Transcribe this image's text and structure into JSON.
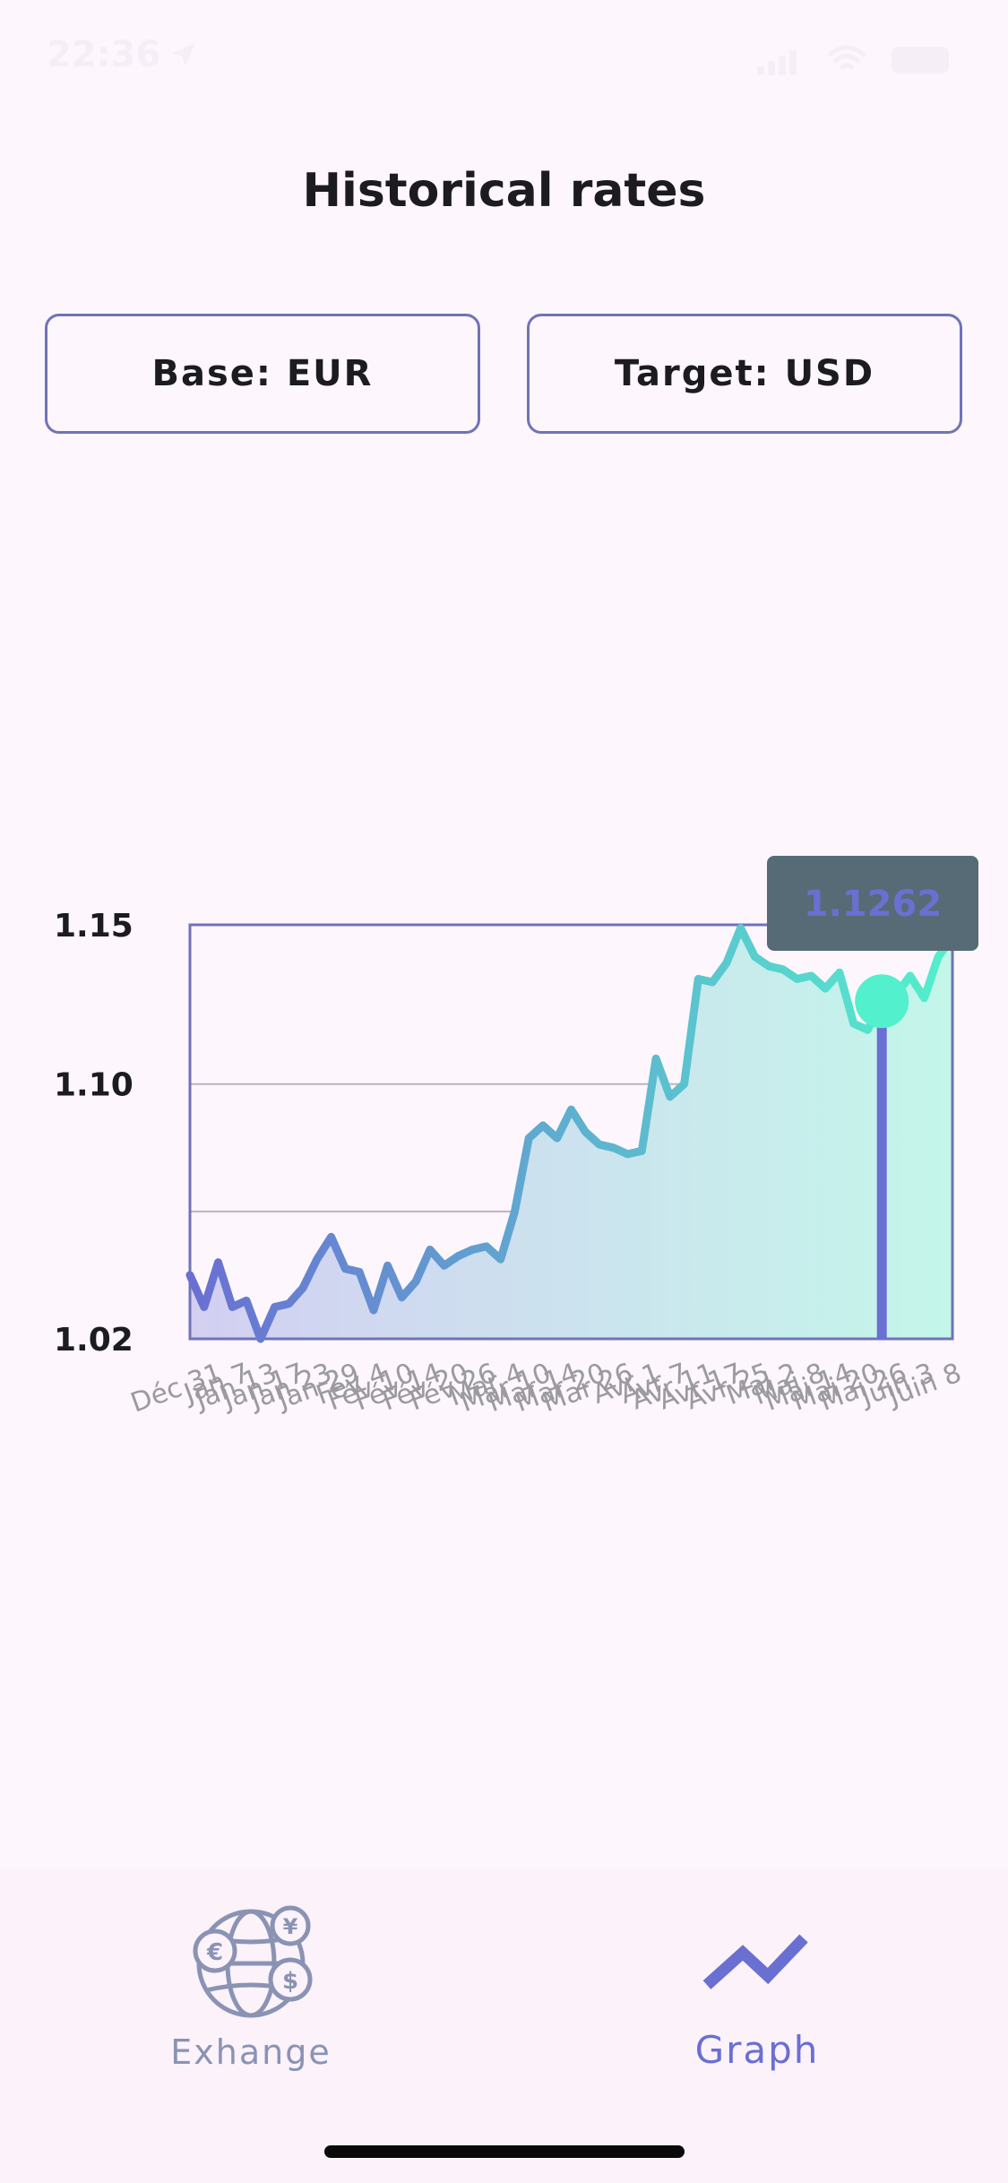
{
  "status_bar": {
    "time": "22:36"
  },
  "header": {
    "title": "Historical rates"
  },
  "selectors": {
    "base_label": "Base: EUR",
    "target_label": "Target: USD"
  },
  "tooltip": {
    "value": "1.1262"
  },
  "colors": {
    "accent": "#6a6fd2",
    "line_start": "#6a6fd2",
    "line_end": "#52f0cc",
    "tooltip_bg": "#566b75",
    "frame": "#6f73b8"
  },
  "chart_data": {
    "type": "line",
    "title": "",
    "xlabel": "",
    "ylabel": "",
    "ylim": [
      1.02,
      1.15
    ],
    "y_ticks": [
      "1.15",
      "1.10",
      "1.02"
    ],
    "grid": true,
    "x_labels": [
      "Déc 31",
      "Jan 7",
      "Jan 13",
      "Jan 17",
      "Jan 23",
      "Jan 29",
      "Fév 4",
      "Fév 10",
      "Fév 14",
      "Fév 20",
      "Fév 26",
      "Mar 4",
      "Mar 10",
      "Mar 14",
      "Mar 20",
      "Mar 26",
      "Avr 1",
      "Avr 7",
      "Avr 11",
      "Avr 17",
      "Avr 25",
      "Mai 2",
      "Mai 8",
      "Mai 14",
      "Mai 20",
      "Mai 26",
      "Juin 3",
      "Juin 8"
    ],
    "series": [
      {
        "values": [
          1.04,
          1.03,
          1.044,
          1.03,
          1.032,
          1.02,
          1.03,
          1.031,
          1.036,
          1.045,
          1.052,
          1.042,
          1.041,
          1.029,
          1.043,
          1.033,
          1.038,
          1.048,
          1.043,
          1.046,
          1.048,
          1.049,
          1.045,
          1.06,
          1.083,
          1.087,
          1.083,
          1.092,
          1.085,
          1.081,
          1.08,
          1.078,
          1.079,
          1.108,
          1.096,
          1.1,
          1.133,
          1.132,
          1.138,
          1.149,
          1.14,
          1.137,
          1.136,
          1.133,
          1.134,
          1.13,
          1.135,
          1.119,
          1.117,
          1.126,
          1.128,
          1.134,
          1.127,
          1.14,
          1.146
        ]
      }
    ],
    "highlight": {
      "index": 49,
      "value": 1.1262
    }
  },
  "bottom_nav": {
    "items": [
      {
        "label": "Exhange",
        "icon": "currency-globe-icon",
        "active": false
      },
      {
        "label": "Graph",
        "icon": "trending-graph-icon",
        "active": true
      }
    ]
  }
}
